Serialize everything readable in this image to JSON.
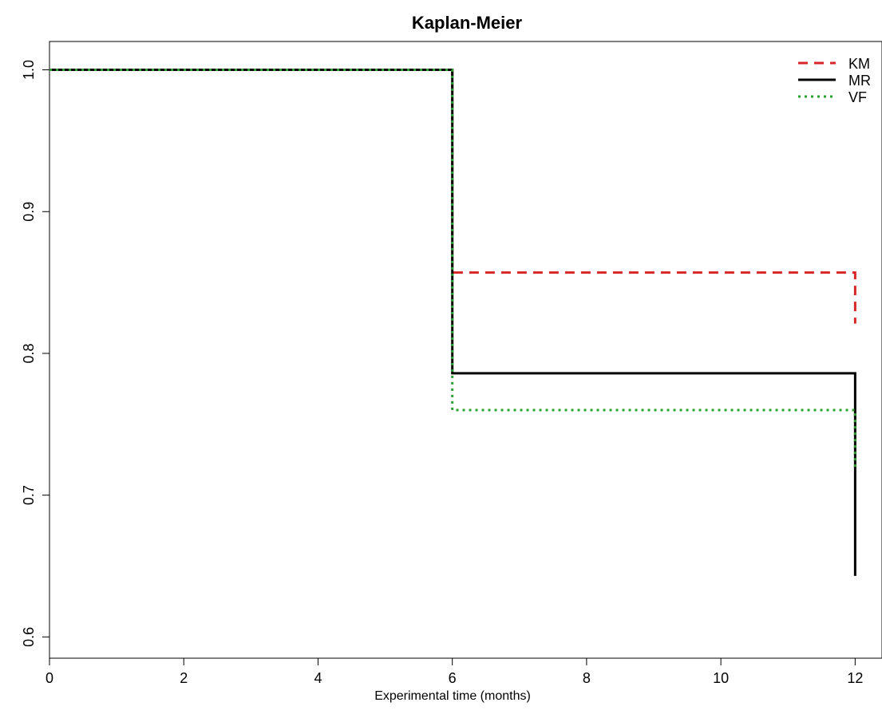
{
  "chart_data": {
    "type": "line",
    "title": "Kaplan-Meier",
    "xlabel": "Experimental time (months)",
    "ylabel": "",
    "xlim": [
      0,
      12.4
    ],
    "ylim": [
      0.585,
      1.02
    ],
    "x_ticks": [
      0,
      2,
      4,
      6,
      8,
      10,
      12
    ],
    "y_ticks": [
      0.6,
      0.7,
      0.8,
      0.9,
      1.0
    ],
    "y_tick_labels": [
      "0.6",
      "0.7",
      "0.8",
      "0.9",
      "1.0"
    ],
    "grid": false,
    "legend_position": "top-right",
    "step": true,
    "series": [
      {
        "name": "KM",
        "color": "#d62728",
        "dash": "dashed",
        "x": [
          0,
          6,
          12
        ],
        "y": [
          1.0,
          0.857,
          0.821
        ]
      },
      {
        "name": "MR",
        "color": "#000000",
        "dash": "solid",
        "x": [
          0,
          6,
          12
        ],
        "y": [
          1.0,
          0.786,
          0.643
        ]
      },
      {
        "name": "VF",
        "color": "#2ca02c",
        "dash": "dotted",
        "x": [
          0,
          6,
          12
        ],
        "y": [
          1.0,
          0.76,
          0.718
        ]
      }
    ]
  }
}
